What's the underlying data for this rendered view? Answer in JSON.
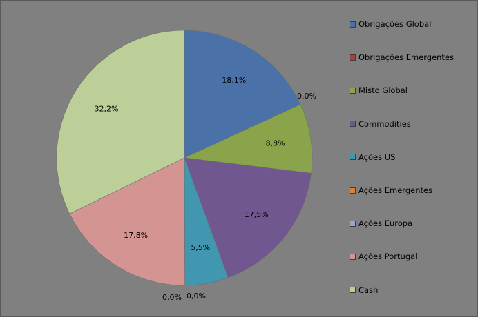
{
  "chart_data": {
    "type": "pie",
    "categories": [
      "Obrigações Global",
      "Obrigações Emergentes",
      "Misto Global",
      "Commodities",
      "Ações US",
      "Ações Emergentes",
      "Ações Europa",
      "Ações Portugal",
      "Cash"
    ],
    "values": [
      18.1,
      0.0,
      8.8,
      17.5,
      5.5,
      0.0,
      0.0,
      17.8,
      32.2
    ],
    "labels": [
      "18,1%",
      "0,0%",
      "8,8%",
      "17,5%",
      "5,5%",
      "0,0%",
      "0,0%",
      "17,8%",
      "32,2%"
    ],
    "colors": [
      "#4A72A8",
      "#A8413D",
      "#89A44B",
      "#71578F",
      "#4197AF",
      "#DA8137",
      "#8FA8CF",
      "#D49592",
      "#BCCF98"
    ],
    "legend_position": "right",
    "start_angle_deg": 0,
    "direction": "clockwise"
  }
}
